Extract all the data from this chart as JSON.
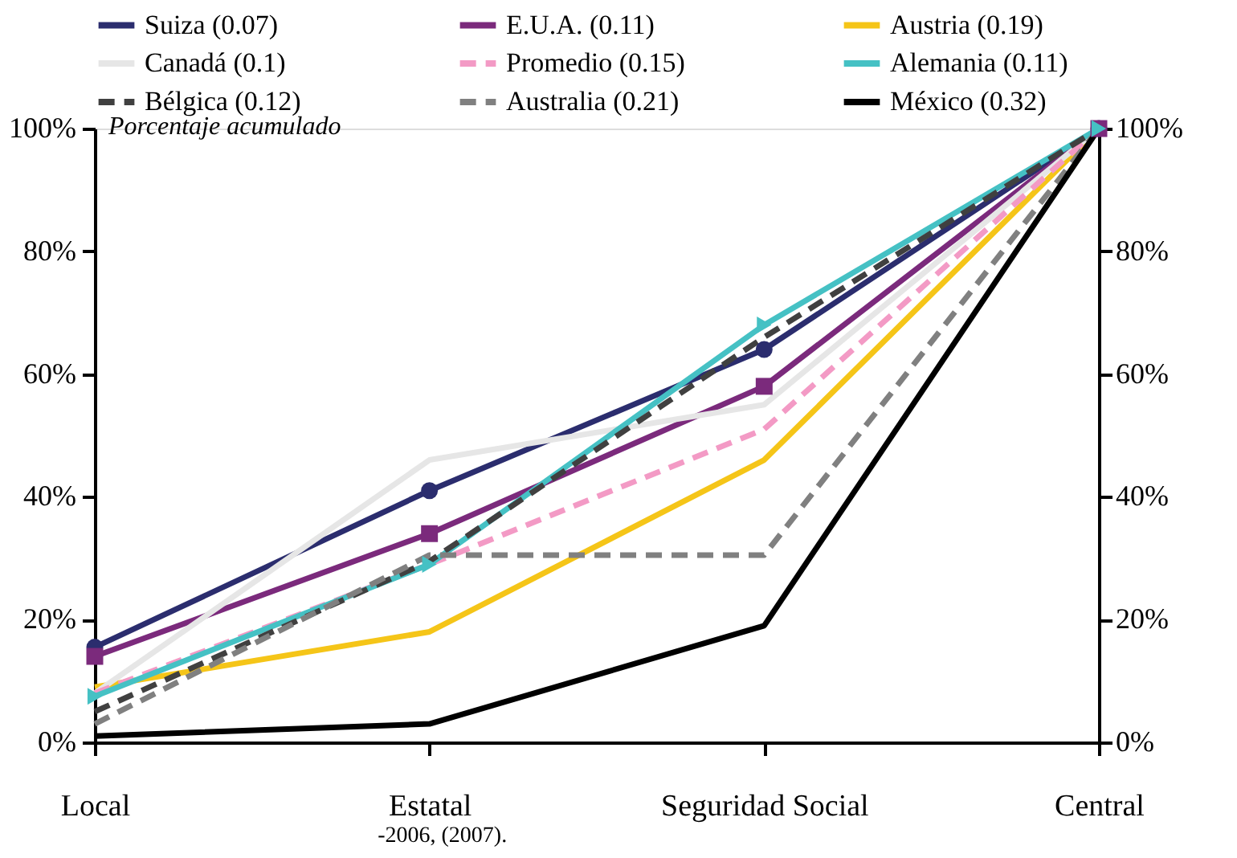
{
  "chart_data": {
    "type": "line",
    "ylabel": "Porcentaje acumulado",
    "categories": [
      "Local",
      "Estatal",
      "Seguridad Social",
      "Central"
    ],
    "series": [
      {
        "name": "Suiza (0.07)",
        "color": "#2b2d6e",
        "marker": "circle",
        "line_style": "solid",
        "values": [
          15.5,
          41,
          64,
          100
        ]
      },
      {
        "name": "E.U.A. (0.11)",
        "color": "#7b2a7c",
        "marker": "square",
        "line_style": "solid",
        "values": [
          14,
          34,
          58,
          100
        ]
      },
      {
        "name": "Austria (0.19)",
        "color": "#f5c518",
        "line_style": "solid",
        "values": [
          9,
          18,
          46,
          100
        ]
      },
      {
        "name": "Canadá (0.1)",
        "color": "#e6e6e6",
        "line_style": "solid",
        "values": [
          8,
          46,
          55,
          100
        ]
      },
      {
        "name": "Promedio (0.15)",
        "color": "#f39ac5",
        "line_style": "dashed",
        "values": [
          8,
          29,
          51,
          100
        ]
      },
      {
        "name": "Alemania (0.11)",
        "color": "#45c1c4",
        "marker": "triangle",
        "line_style": "solid",
        "values": [
          7.5,
          29,
          68,
          100
        ]
      },
      {
        "name": "Bélgica (0.12)",
        "color": "#404040",
        "line_style": "dashed",
        "values": [
          5,
          29.5,
          66,
          100
        ]
      },
      {
        "name": "Australia (0.21)",
        "color": "#808080",
        "line_style": "dashed",
        "values": [
          3,
          30.5,
          30.5,
          100
        ]
      },
      {
        "name": "México (0.32)",
        "color": "#000000",
        "line_style": "solid",
        "values": [
          1,
          3,
          19,
          100
        ]
      }
    ],
    "ylim": [
      0,
      100
    ],
    "yticks": [
      {
        "value": 0,
        "label": "0%"
      },
      {
        "value": 20,
        "label": "20%"
      },
      {
        "value": 40,
        "label": "40%"
      },
      {
        "value": 60,
        "label": "60%"
      },
      {
        "value": 80,
        "label": "80%"
      },
      {
        "value": 100,
        "label": "100%"
      }
    ],
    "y2lim": [
      0,
      100
    ],
    "y2ticks": [
      {
        "value": 0,
        "label": "0%"
      },
      {
        "value": 20,
        "label": "20%"
      },
      {
        "value": 40,
        "label": "40%"
      },
      {
        "value": 60,
        "label": "60%"
      },
      {
        "value": 80,
        "label": "80%"
      },
      {
        "value": 100,
        "label": "100%"
      }
    ],
    "annotations": [
      "-2006, (2007)."
    ],
    "legend": "top",
    "grid": false
  }
}
